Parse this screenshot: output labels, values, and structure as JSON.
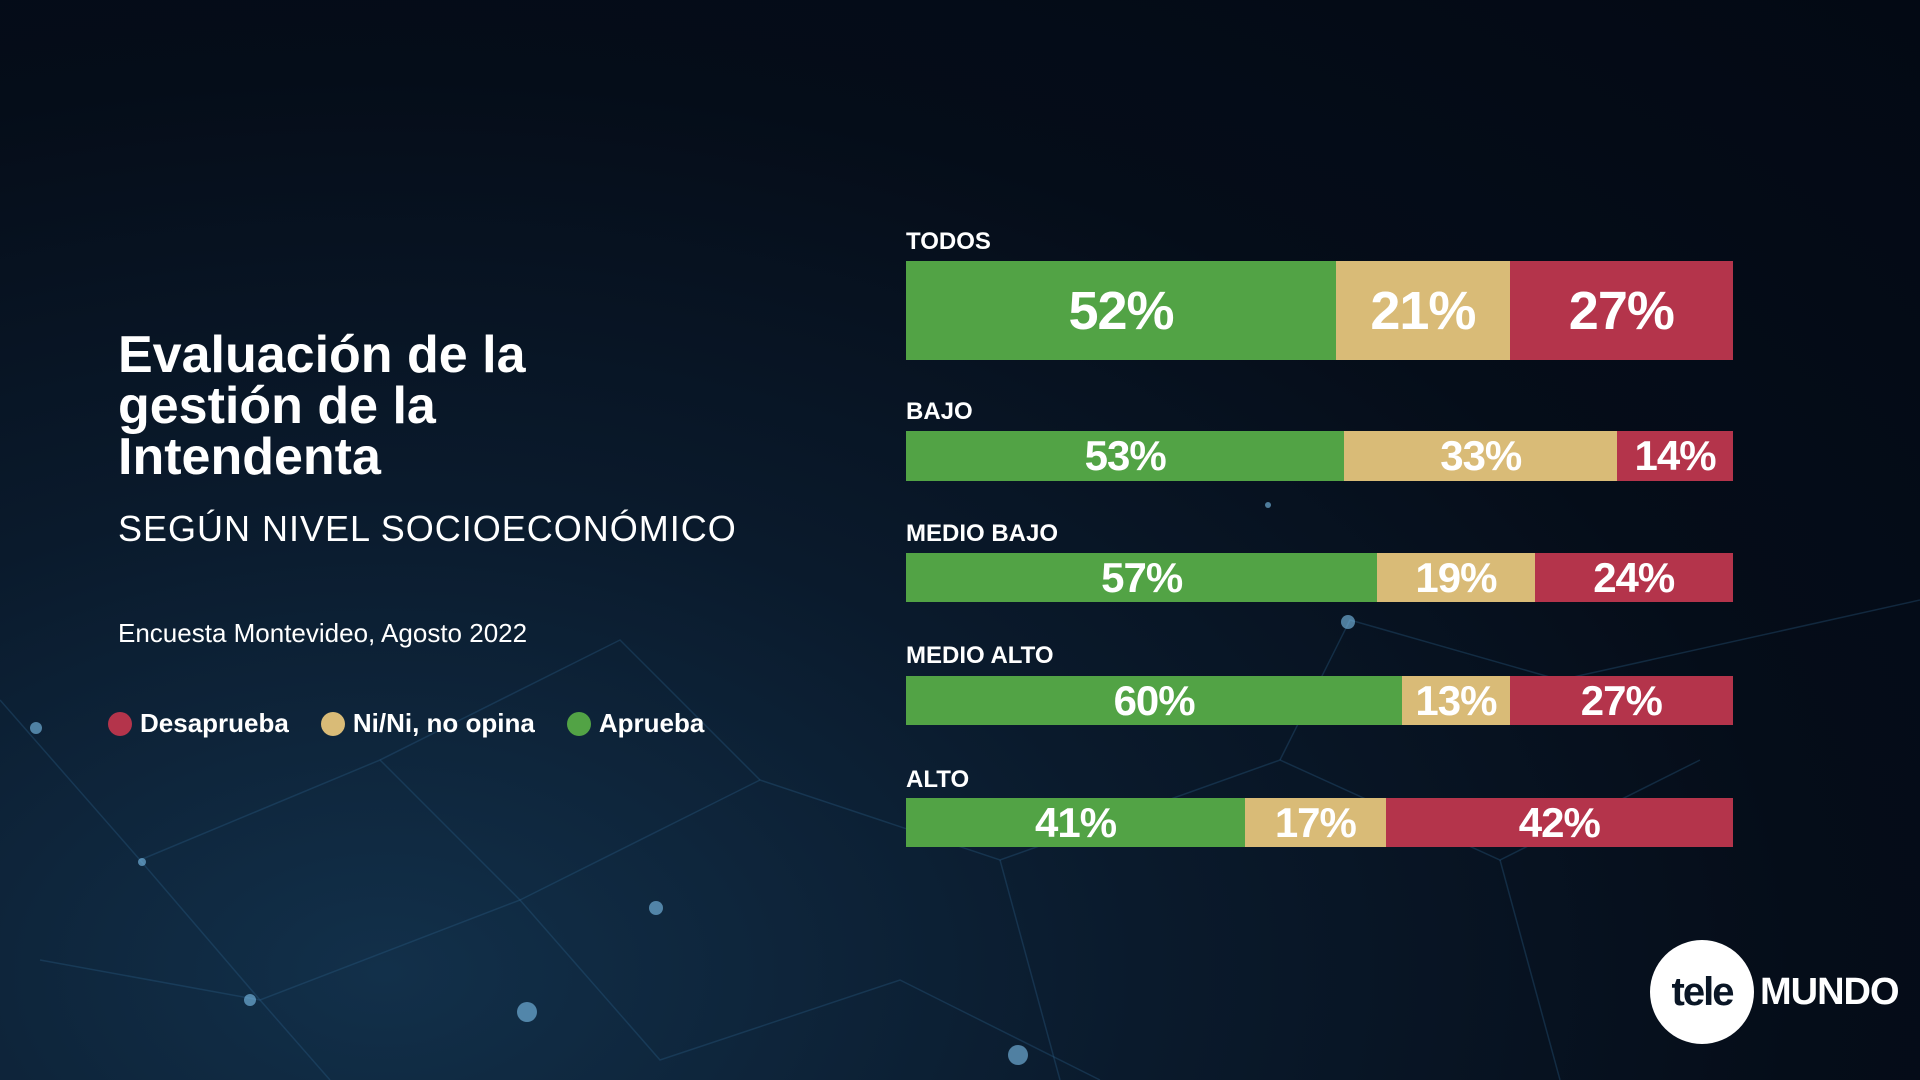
{
  "title": "Evaluación de la gestión de la Intendenta",
  "subtitle": "SEGÚN NIVEL SOCIOECONÓMICO",
  "source": "Encuesta Montevideo, Agosto 2022",
  "legend": [
    {
      "label": "Desaprueba",
      "color": "#b4344b"
    },
    {
      "label": "Ni/Ni, no opina",
      "color": "#d9bb77"
    },
    {
      "label": "Aprueba",
      "color": "#52a345"
    }
  ],
  "logo": {
    "left": "tele",
    "right": "MUNDO"
  },
  "chart_data": {
    "type": "bar",
    "orientation": "horizontal-stacked-100",
    "categories": [
      "TODOS",
      "BAJO",
      "MEDIO BAJO",
      "MEDIO ALTO",
      "ALTO"
    ],
    "series": [
      {
        "name": "Aprueba",
        "color": "#52a345",
        "values": [
          52,
          53,
          57,
          60,
          41
        ],
        "labels": [
          "52%",
          "53%",
          "57%",
          "60%",
          "41%"
        ]
      },
      {
        "name": "Ni/Ni, no opina",
        "color": "#d9bb77",
        "values": [
          21,
          33,
          19,
          13,
          17
        ],
        "labels": [
          "21%",
          "33%",
          "19%",
          "13%",
          "17%"
        ]
      },
      {
        "name": "Desaprueba",
        "color": "#b4344b",
        "values": [
          27,
          14,
          24,
          27,
          42
        ],
        "labels": [
          "27%",
          "14%",
          "24%",
          "27%",
          "42%"
        ]
      }
    ],
    "xlim": [
      0,
      100
    ]
  }
}
